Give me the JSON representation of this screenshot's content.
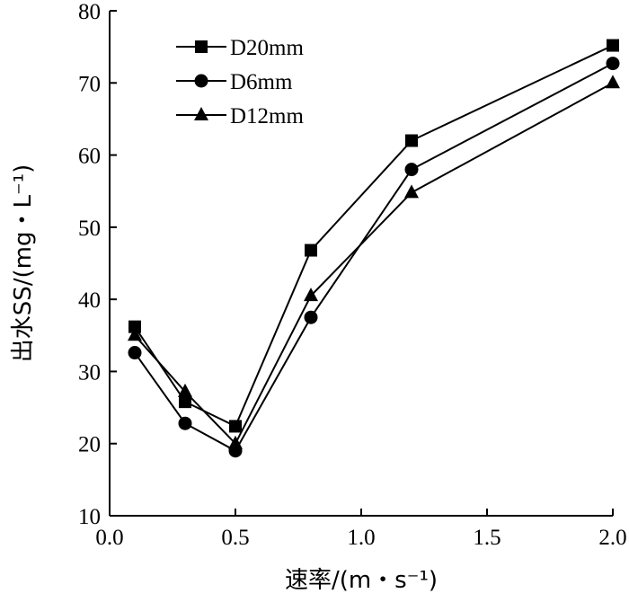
{
  "chart_data": {
    "type": "line",
    "xlabel": "速率/(m・s⁻¹)",
    "ylabel": "出水SS/(mg・L⁻¹)",
    "xlim": [
      0.0,
      2.0
    ],
    "ylim": [
      10,
      80
    ],
    "xticks": [
      "0.0",
      "0.5",
      "1.0",
      "1.5",
      "2.0"
    ],
    "yticks": [
      "10",
      "20",
      "30",
      "40",
      "50",
      "60",
      "70",
      "80"
    ],
    "x": [
      0.1,
      0.3,
      0.5,
      0.8,
      1.2,
      2.0
    ],
    "series": [
      {
        "name": "D20mm",
        "marker": "square",
        "values": [
          36.2,
          25.8,
          22.4,
          46.8,
          62.0,
          75.2
        ]
      },
      {
        "name": "D6mm",
        "marker": "circle",
        "values": [
          32.6,
          22.8,
          19.0,
          37.5,
          58.0,
          72.7
        ]
      },
      {
        "name": "D12mm",
        "marker": "triangle",
        "values": [
          35.0,
          27.2,
          20.0,
          40.5,
          54.8,
          70.0
        ]
      }
    ],
    "legend": "top-left",
    "grid": false
  }
}
